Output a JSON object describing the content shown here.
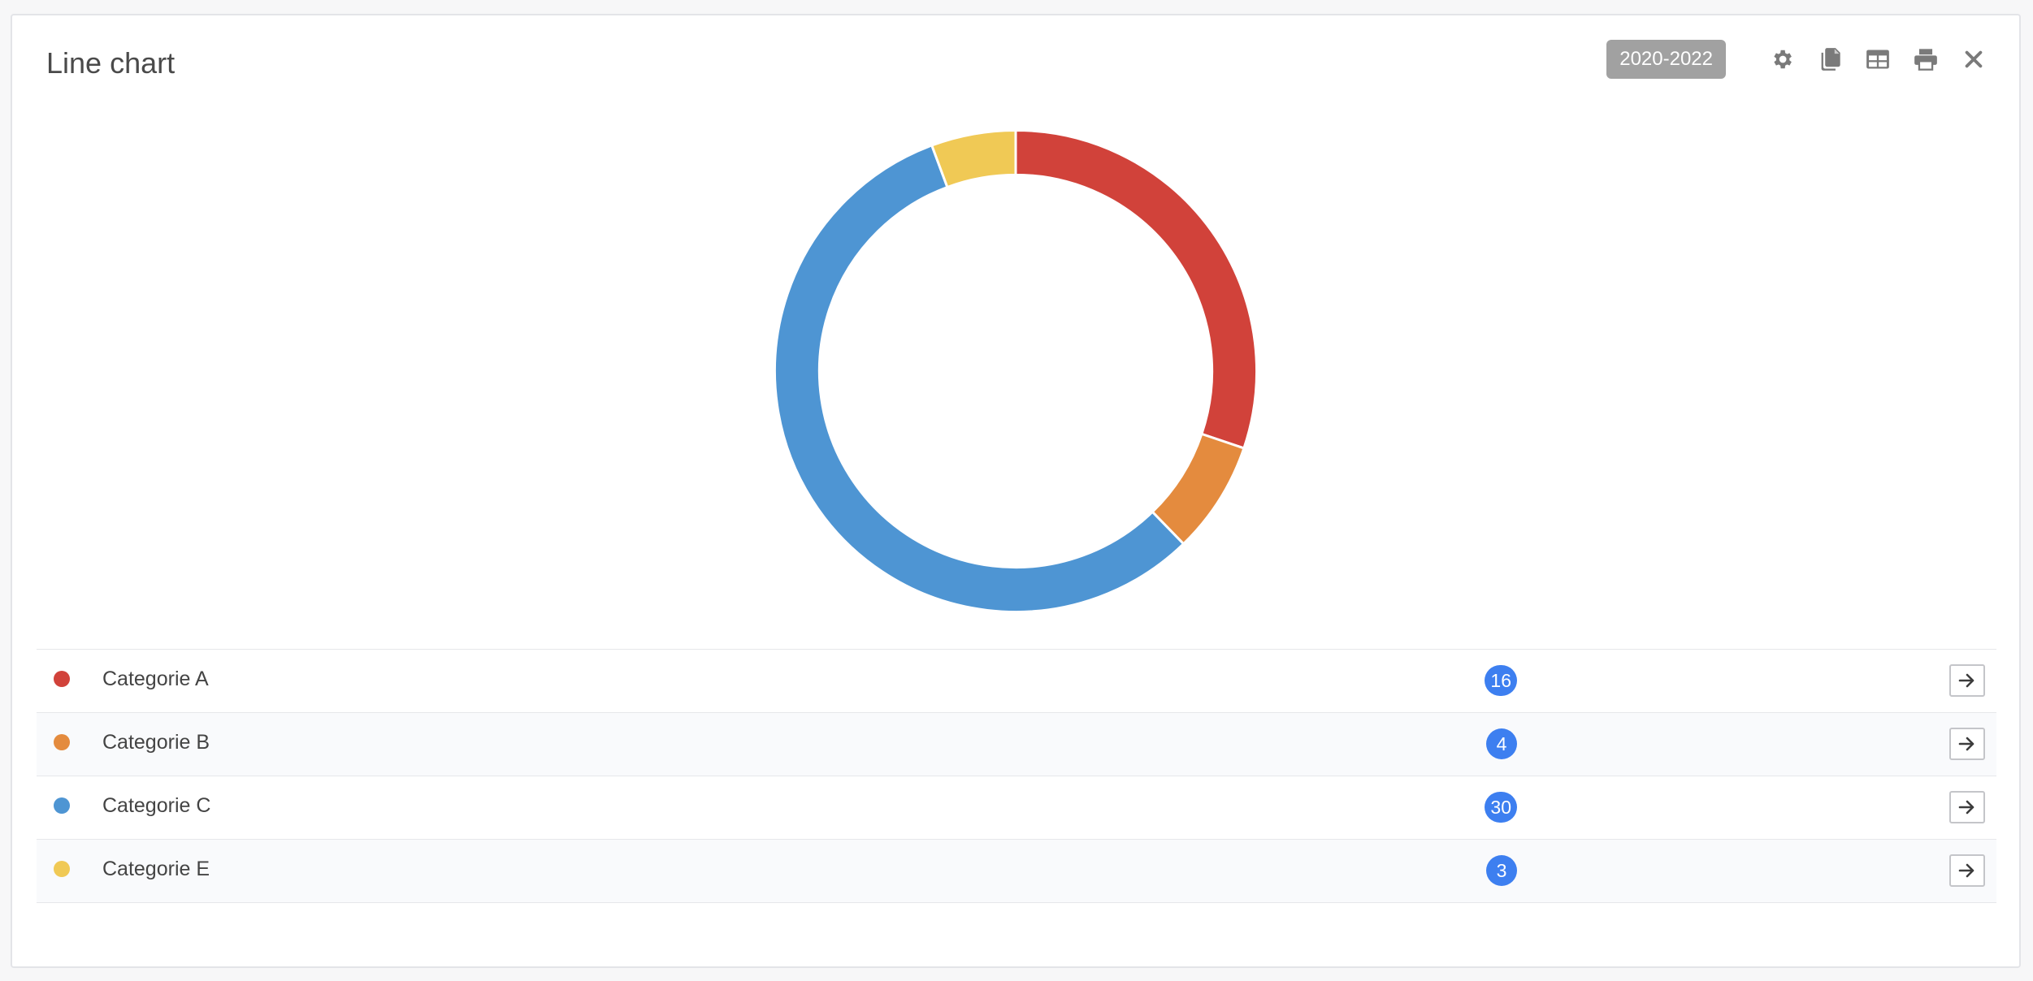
{
  "panel": {
    "title": "Line chart",
    "range_label": "2020-2022"
  },
  "toolbar": {
    "icons": [
      "gear-icon",
      "copy-icon",
      "table-icon",
      "print-icon",
      "close-icon"
    ]
  },
  "chart_data": {
    "type": "pie",
    "variant": "donut",
    "categories": [
      "Categorie A",
      "Categorie B",
      "Categorie C",
      "Categorie E"
    ],
    "values": [
      16,
      4,
      30,
      3
    ],
    "colors": [
      "#d1423a",
      "#e48b3e",
      "#4e95d3",
      "#f0c955"
    ]
  },
  "legend": {
    "items": [
      {
        "label": "Categorie A",
        "count": "16",
        "color": "#d1423a"
      },
      {
        "label": "Categorie B",
        "count": "4",
        "color": "#e48b3e"
      },
      {
        "label": "Categorie C",
        "count": "30",
        "color": "#4e95d3"
      },
      {
        "label": "Categorie E",
        "count": "3",
        "color": "#f0c955"
      }
    ],
    "row_action_icon": "arrow-right-icon"
  },
  "colors": {
    "badge_blue": "#3d7ff0",
    "range_badge": "#a1a1a1"
  }
}
